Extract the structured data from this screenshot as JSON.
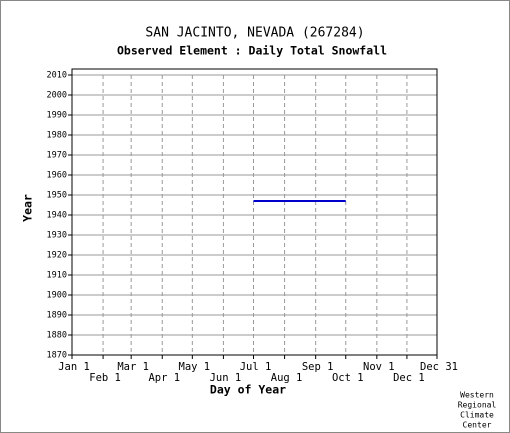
{
  "chart_data": {
    "type": "line",
    "title": "SAN JACINTO, NEVADA   (267284)",
    "subtitle": "Observed Element : Daily Total Snowfall",
    "x_label": "Day of Year",
    "y_label": "Year",
    "x": [
      182,
      274
    ],
    "values": [
      1947,
      1947
    ],
    "color": "#0000cc",
    "xlim": [
      1,
      365
    ],
    "xticks": [
      {
        "value": 1,
        "label": "Jan 1"
      },
      {
        "value": 32,
        "label": "Feb 1"
      },
      {
        "value": 60,
        "label": "Mar 1"
      },
      {
        "value": 91,
        "label": "Apr 1"
      },
      {
        "value": 121,
        "label": "May 1"
      },
      {
        "value": 152,
        "label": "Jun 1"
      },
      {
        "value": 182,
        "label": "Jul 1"
      },
      {
        "value": 213,
        "label": "Aug 1"
      },
      {
        "value": 244,
        "label": "Sep 1"
      },
      {
        "value": 274,
        "label": "Oct 1"
      },
      {
        "value": 305,
        "label": "Nov 1"
      },
      {
        "value": 335,
        "label": "Dec 1"
      },
      {
        "value": 365,
        "label": "Dec 31"
      }
    ],
    "ylim": [
      1870,
      2010
    ],
    "yticks": [
      1870,
      1880,
      1890,
      1900,
      1910,
      1920,
      1930,
      1940,
      1950,
      1960,
      1970,
      1980,
      1990,
      2000,
      2010
    ],
    "grid": true,
    "credit": [
      "Western",
      "Regional",
      "Climate",
      "Center"
    ]
  }
}
